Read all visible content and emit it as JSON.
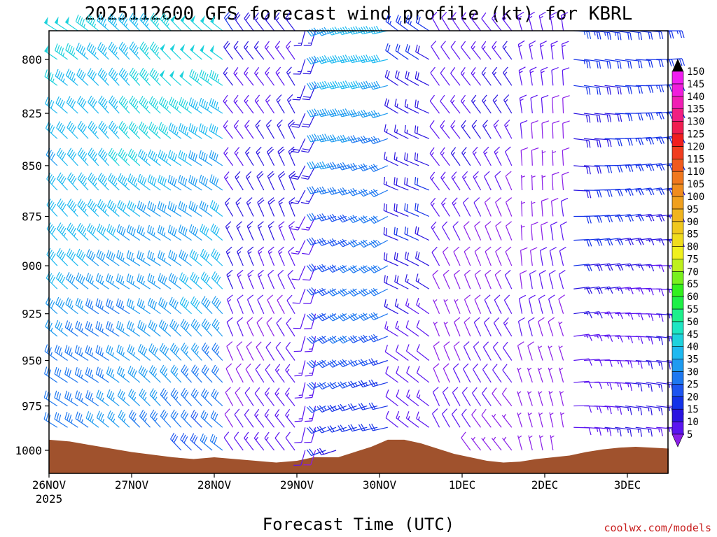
{
  "chart_data": {
    "type": "wind-barb-profile",
    "title": "2025112600 GFS forecast wind profile (kt) for KBRL",
    "xlabel": "Forecast Time (UTC)",
    "credit": "coolwx.com/models",
    "x_ticks": [
      {
        "label": "26NOV",
        "sub": "2025"
      },
      {
        "label": "27NOV",
        "sub": ""
      },
      {
        "label": "28NOV",
        "sub": ""
      },
      {
        "label": "29NOV",
        "sub": ""
      },
      {
        "label": "30NOV",
        "sub": ""
      },
      {
        "label": "1DEC",
        "sub": ""
      },
      {
        "label": "2DEC",
        "sub": ""
      },
      {
        "label": "3DEC",
        "sub": ""
      }
    ],
    "x_range_days": [
      0,
      7.5
    ],
    "y_ticks": [
      800,
      825,
      850,
      875,
      900,
      925,
      950,
      975,
      1000
    ],
    "y_range_hpa": [
      780,
      1011
    ],
    "levels_hpa": [
      787,
      800,
      812,
      825,
      837,
      850,
      862,
      875,
      887,
      900,
      912,
      925,
      937,
      950,
      962,
      975,
      987,
      1000
    ],
    "timestep_hours": 3,
    "colorbar": {
      "levels": [
        5,
        10,
        15,
        20,
        25,
        30,
        35,
        40,
        45,
        50,
        55,
        60,
        65,
        70,
        75,
        80,
        85,
        90,
        95,
        100,
        105,
        110,
        115,
        120,
        125,
        130,
        135,
        140,
        145,
        150
      ],
      "colors": [
        "#8a1ee8",
        "#5a14f0",
        "#2a14e0",
        "#1432e8",
        "#1e55f0",
        "#1e78f0",
        "#1e9bf0",
        "#1eb9f0",
        "#1ed2dc",
        "#1ee6c3",
        "#1ef08c",
        "#1ef046",
        "#32f01e",
        "#78f01e",
        "#bef01e",
        "#f0f01e",
        "#f0dc1e",
        "#f0c81e",
        "#f0b41e",
        "#f0a01e",
        "#f08c1e",
        "#f0781e",
        "#f05a1e",
        "#f03c1e",
        "#f01e1e",
        "#f01e50",
        "#f01e82",
        "#f01eb4",
        "#f01edc",
        "#f01ef0"
      ]
    },
    "terrain": {
      "color": "#a0522d",
      "surface_pressure_hpa": [
        [
          0.0,
          994
        ],
        [
          0.25,
          995
        ],
        [
          0.5,
          997
        ],
        [
          0.75,
          999
        ],
        [
          1.0,
          1001
        ],
        [
          1.25,
          1002.5
        ],
        [
          1.5,
          1004
        ],
        [
          1.75,
          1005
        ],
        [
          2.0,
          1004
        ],
        [
          2.25,
          1005
        ],
        [
          2.5,
          1006
        ],
        [
          2.75,
          1007
        ],
        [
          3.0,
          1006
        ],
        [
          3.2,
          1004
        ],
        [
          3.5,
          1004
        ],
        [
          3.7,
          1001
        ],
        [
          3.9,
          998
        ],
        [
          4.0,
          996
        ],
        [
          4.1,
          994
        ],
        [
          4.3,
          994
        ],
        [
          4.5,
          996
        ],
        [
          4.7,
          999
        ],
        [
          4.9,
          1002
        ],
        [
          5.1,
          1004
        ],
        [
          5.3,
          1006
        ],
        [
          5.5,
          1007
        ],
        [
          5.7,
          1006.5
        ],
        [
          5.9,
          1005
        ],
        [
          6.1,
          1004
        ],
        [
          6.3,
          1003
        ],
        [
          6.5,
          1001
        ],
        [
          6.7,
          999.5
        ],
        [
          6.9,
          998.5
        ],
        [
          7.1,
          998
        ],
        [
          7.3,
          998.5
        ],
        [
          7.5,
          999
        ]
      ]
    },
    "wind_regimes": [
      {
        "day_end": 2.2,
        "dir_deg": 310,
        "spd_upper_kt": 47,
        "spd_lower_kt": 32
      },
      {
        "day_end": 3.0,
        "dir_deg": 330,
        "spd_upper_kt": 18,
        "spd_lower_kt": 10
      },
      {
        "day_end": 3.3,
        "dir_deg": 200,
        "spd_upper_kt": 18,
        "spd_lower_kt": 10
      },
      {
        "day_end": 4.15,
        "dir_deg": 250,
        "spd_upper_kt": 40,
        "spd_lower_kt": 22
      },
      {
        "day_end": 4.6,
        "dir_deg": 300,
        "spd_upper_kt": 22,
        "spd_lower_kt": 12
      },
      {
        "day_end": 5.6,
        "dir_deg": 330,
        "spd_upper_kt": 14,
        "spd_lower_kt": 8
      },
      {
        "day_end": 6.3,
        "dir_deg": 350,
        "spd_upper_kt": 12,
        "spd_lower_kt": 6
      },
      {
        "day_end": 7.5,
        "dir_deg": 90,
        "spd_upper_kt": 24,
        "spd_lower_kt": 12
      }
    ]
  }
}
